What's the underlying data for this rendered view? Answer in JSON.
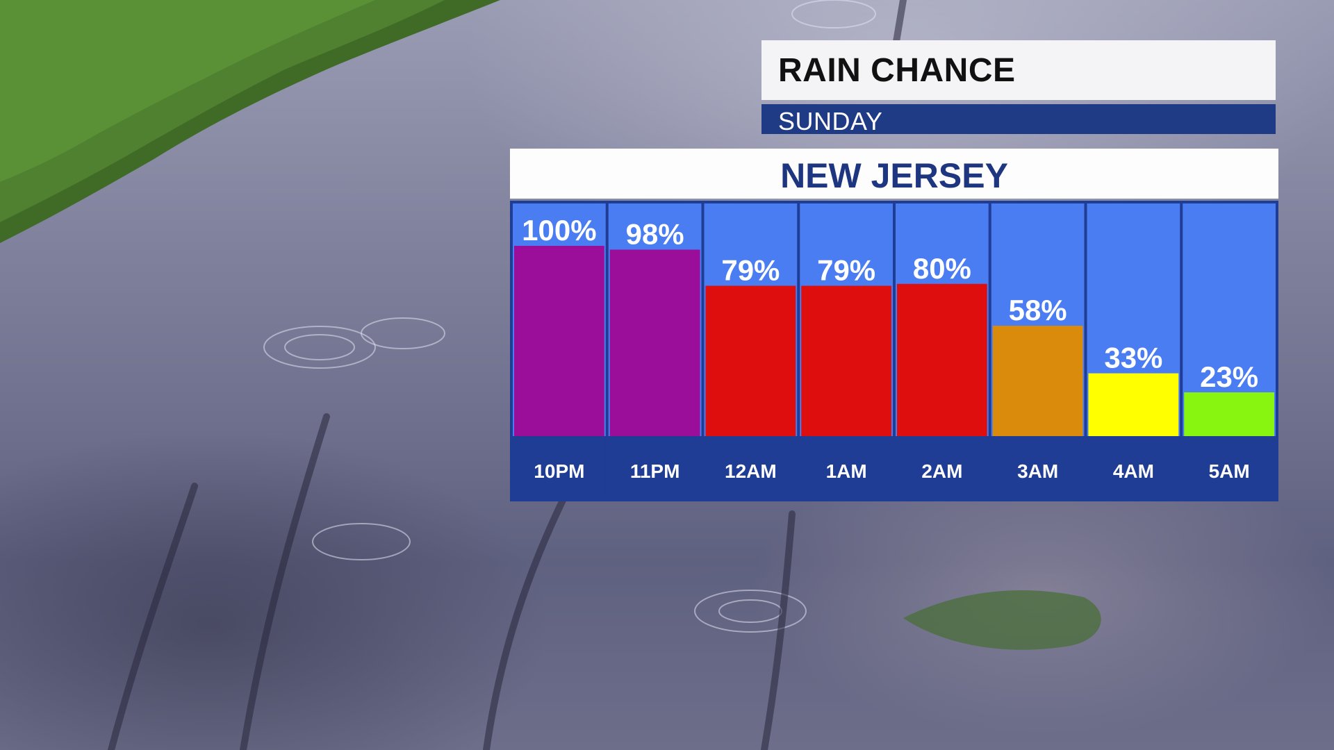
{
  "header": {
    "title": "RAIN CHANCE",
    "day": "SUNDAY",
    "region": "NEW JERSEY"
  },
  "colors": {
    "panel_bg": "#4a7cf2",
    "panel_dark": "#1f3d94",
    "header_dark": "#1f3b86"
  },
  "chart_data": {
    "type": "bar",
    "categories": [
      "10PM",
      "11PM",
      "12AM",
      "1AM",
      "2AM",
      "3AM",
      "4AM",
      "5AM"
    ],
    "values": [
      100,
      98,
      79,
      79,
      80,
      58,
      33,
      23
    ],
    "value_labels": [
      "100%",
      "98%",
      "79%",
      "79%",
      "80%",
      "58%",
      "33%",
      "23%"
    ],
    "bar_colors": [
      "#9a0e99",
      "#9a0e99",
      "#de0e0e",
      "#de0e0e",
      "#de0e0e",
      "#da8b0c",
      "#ffff00",
      "#88f511"
    ],
    "ylim": [
      0,
      100
    ],
    "grid": false,
    "legend": "none"
  }
}
